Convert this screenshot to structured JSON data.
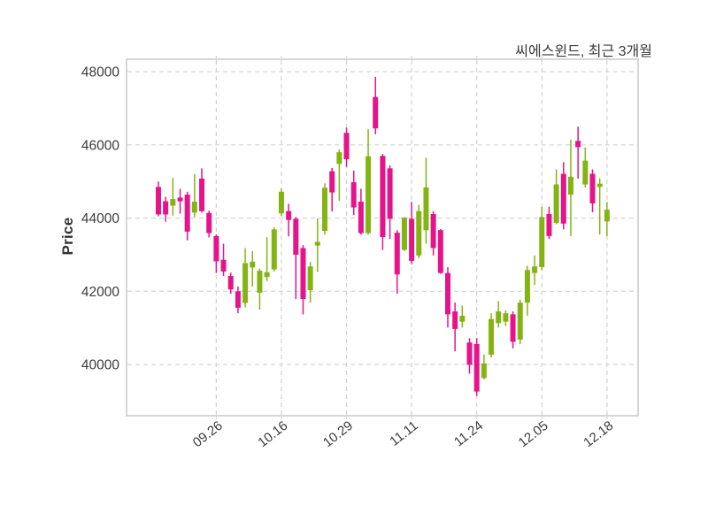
{
  "title": "씨에스윈드, 최근 3개월",
  "y_axis_label": "Price",
  "colors": {
    "background": "#ffffff",
    "up": "#84b414",
    "down": "#e5148b",
    "grid": "#d2d2d2",
    "spine": "#d6d6d6",
    "tick_text": "#3b3b3b"
  },
  "chart_data": {
    "type": "candlestick",
    "title": "씨에스윈드, 최근 3개월",
    "xlabel": "",
    "ylabel": "Price",
    "grid": true,
    "legend": "none",
    "yticks": [
      40000,
      42000,
      44000,
      46000,
      48000
    ],
    "ylim": [
      38600,
      48340
    ],
    "xlim": [
      -4.4,
      66.3
    ],
    "xticks": [
      {
        "index": 8,
        "label": "09.26"
      },
      {
        "index": 17,
        "label": "10.16"
      },
      {
        "index": 26,
        "label": "10.29"
      },
      {
        "index": 35,
        "label": "11.11"
      },
      {
        "index": 44,
        "label": "11.24"
      },
      {
        "index": 53,
        "label": "12.05"
      },
      {
        "index": 62,
        "label": "12.18"
      }
    ],
    "up_color": "#84b414",
    "down_color": "#e5148b",
    "columns": [
      "open",
      "high",
      "low",
      "close"
    ],
    "candles": [
      [
        44850,
        45000,
        44050,
        44100
      ],
      [
        44460,
        44580,
        43900,
        44100
      ],
      [
        44340,
        45100,
        44070,
        44520
      ],
      [
        44560,
        44800,
        44120,
        44460
      ],
      [
        44640,
        44720,
        43390,
        43630
      ],
      [
        44150,
        45200,
        44030,
        44450
      ],
      [
        45080,
        45360,
        44150,
        44190
      ],
      [
        44140,
        44200,
        43470,
        43590
      ],
      [
        43510,
        43550,
        42500,
        42820
      ],
      [
        42860,
        43300,
        42420,
        42540
      ],
      [
        42420,
        42510,
        41930,
        42050
      ],
      [
        42000,
        42130,
        41400,
        41550
      ],
      [
        41680,
        43180,
        41560,
        42770
      ],
      [
        42650,
        43100,
        42130,
        42810
      ],
      [
        41960,
        42620,
        41500,
        42560
      ],
      [
        42390,
        43480,
        42280,
        42520
      ],
      [
        42600,
        43750,
        42540,
        43690
      ],
      [
        44130,
        44800,
        44050,
        44720
      ],
      [
        44190,
        44390,
        43500,
        43950
      ],
      [
        43980,
        44030,
        41790,
        43000
      ],
      [
        43180,
        43260,
        41370,
        41790
      ],
      [
        42030,
        42800,
        41690,
        42680
      ],
      [
        43250,
        43990,
        42530,
        43350
      ],
      [
        43650,
        44950,
        43550,
        44830
      ],
      [
        45280,
        45370,
        44180,
        44700
      ],
      [
        45480,
        45880,
        44470,
        45800
      ],
      [
        46330,
        46470,
        45400,
        45610
      ],
      [
        44980,
        45300,
        44080,
        44290
      ],
      [
        44450,
        44800,
        43550,
        43590
      ],
      [
        43590,
        46430,
        43550,
        45690
      ],
      [
        47310,
        47860,
        46290,
        46450
      ],
      [
        45700,
        45750,
        43130,
        43480
      ],
      [
        45360,
        45440,
        43430,
        43980
      ],
      [
        43600,
        43670,
        41930,
        42460
      ],
      [
        43130,
        44030,
        43100,
        44010
      ],
      [
        43980,
        44440,
        42740,
        42830
      ],
      [
        42980,
        44360,
        42900,
        44190
      ],
      [
        43670,
        45650,
        43300,
        44840
      ],
      [
        44110,
        44190,
        42980,
        43180
      ],
      [
        43670,
        43700,
        42480,
        42500
      ],
      [
        42500,
        42660,
        41010,
        41370
      ],
      [
        41450,
        41690,
        40360,
        40970
      ],
      [
        41170,
        41610,
        41010,
        41330
      ],
      [
        40600,
        40720,
        39750,
        39990
      ],
      [
        40560,
        40720,
        39140,
        39260
      ],
      [
        39630,
        40270,
        39590,
        40030
      ],
      [
        40270,
        41400,
        40190,
        41240
      ],
      [
        41130,
        41730,
        41010,
        41450
      ],
      [
        41170,
        41480,
        41050,
        41400
      ],
      [
        41370,
        41450,
        40440,
        40620
      ],
      [
        40680,
        41770,
        40560,
        41690
      ],
      [
        41690,
        42700,
        41330,
        42580
      ],
      [
        42500,
        42980,
        42170,
        42680
      ],
      [
        42660,
        44310,
        42580,
        44030
      ],
      [
        44110,
        44310,
        43430,
        43510
      ],
      [
        43870,
        45330,
        43830,
        44920
      ],
      [
        45210,
        45530,
        43690,
        43850
      ],
      [
        44640,
        46140,
        43510,
        45130
      ],
      [
        46110,
        46500,
        45080,
        45940
      ],
      [
        44920,
        45930,
        44840,
        45570
      ],
      [
        45210,
        45330,
        44160,
        44400
      ],
      [
        44850,
        45090,
        43550,
        44940
      ],
      [
        43910,
        44440,
        43510,
        44230
      ]
    ]
  }
}
